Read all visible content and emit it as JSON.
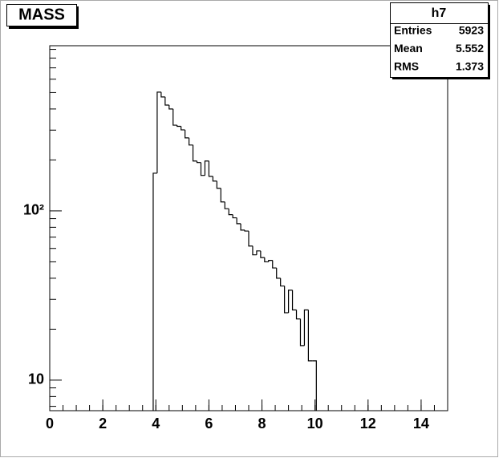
{
  "chart_data": {
    "type": "histogram",
    "title": "MASS",
    "bins": [
      3.9,
      4.05,
      4.2,
      4.35,
      4.5,
      4.65,
      4.8,
      4.95,
      5.1,
      5.25,
      5.4,
      5.55,
      5.7,
      5.85,
      6.0,
      6.15,
      6.3,
      6.45,
      6.6,
      6.75,
      6.9,
      7.05,
      7.2,
      7.35,
      7.5,
      7.65,
      7.8,
      7.95,
      8.1,
      8.25,
      8.4,
      8.55,
      8.7,
      8.85,
      9.0,
      9.15,
      9.3,
      9.45,
      9.6,
      9.75,
      9.9,
      10.05
    ],
    "counts": [
      167,
      503,
      471,
      422,
      400,
      321,
      316,
      301,
      270,
      245,
      197,
      193,
      162,
      197,
      160,
      150,
      136,
      113,
      103,
      95,
      91,
      84,
      77,
      76,
      62,
      55,
      58,
      53,
      50,
      51,
      46,
      40,
      36,
      25,
      34,
      26,
      23,
      16,
      26,
      13,
      13
    ],
    "color": "#000000",
    "xlim": [
      0,
      15
    ],
    "xticks": [
      0,
      2,
      4,
      6,
      8,
      10,
      12,
      14
    ],
    "ylim": [
      6.6,
      946
    ],
    "ylog": true,
    "yticks": [
      10,
      {
        "value": 100,
        "label": "10²"
      }
    ],
    "stats": {
      "name": "h7",
      "rows": [
        {
          "label": "Entries",
          "value": 5923
        },
        {
          "label": "Mean",
          "value": 5.552
        },
        {
          "label": "RMS",
          "value": 1.373
        }
      ]
    }
  }
}
